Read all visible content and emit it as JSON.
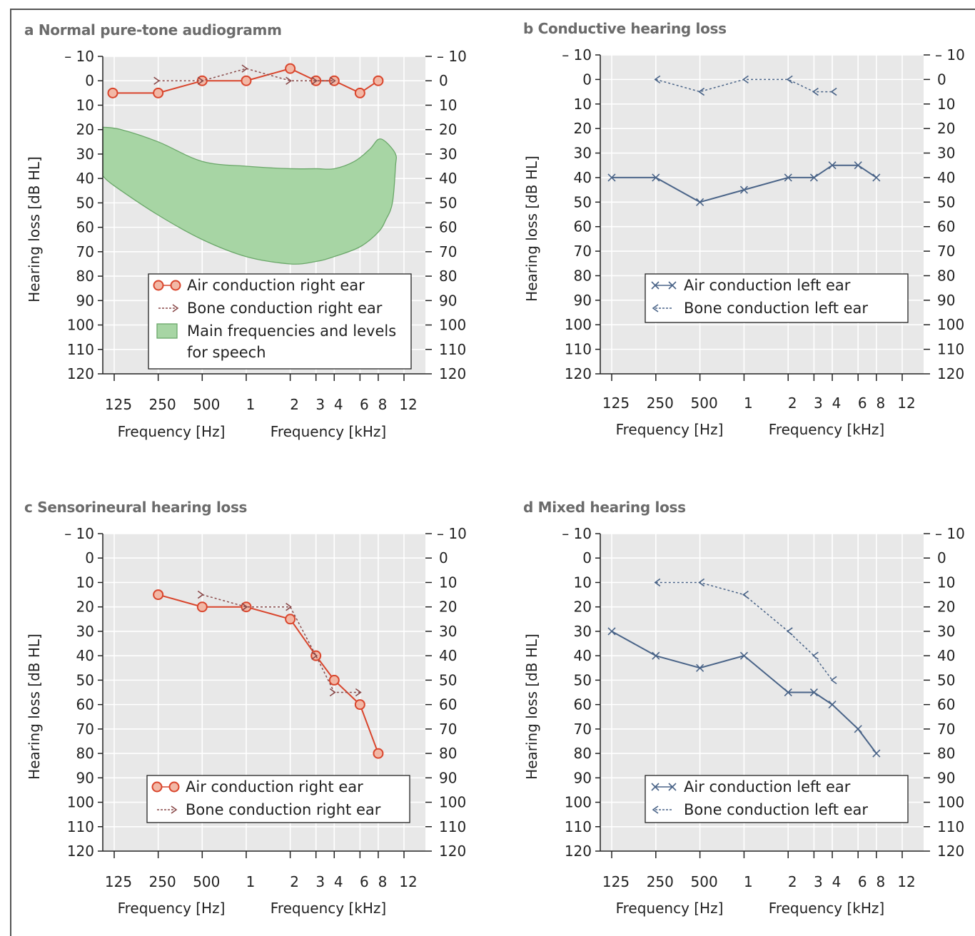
{
  "colors": {
    "red": "#d9452c",
    "red_fill": "#f2b8a6",
    "bone_red": "#8a4a4a",
    "blue": "#4a6488",
    "green_fill": "#a7d5a4",
    "green_stroke": "#6aa769",
    "plot_bg": "#e8e8e8",
    "grid": "#ffffff"
  },
  "chart_data": [
    {
      "id": "a",
      "type": "line",
      "title": "a Normal pure-tone audiogramm",
      "x_ticks": [
        "125",
        "250",
        "500",
        "1",
        "2",
        "3",
        "4",
        "6",
        "8",
        "12"
      ],
      "x_tick_values_hz": [
        125,
        250,
        500,
        1000,
        2000,
        3000,
        4000,
        6000,
        8000,
        12000
      ],
      "x_labels": [
        "Frequency [Hz]",
        "Frequency [kHz]"
      ],
      "ylabel": "Hearing loss [dB HL]",
      "ylim": [
        -10,
        120
      ],
      "y_ticks": [
        "– 10",
        "0",
        "10",
        "20",
        "30",
        "40",
        "50",
        "60",
        "70",
        "80",
        "90",
        "100",
        "110",
        "120"
      ],
      "series": [
        {
          "name": "Air conduction right ear",
          "style": "air-right",
          "x": [
            110,
            250,
            500,
            1000,
            2000,
            3000,
            4000,
            6000,
            8000
          ],
          "y": [
            5,
            5,
            0,
            0,
            -5,
            0,
            0,
            5,
            0
          ]
        },
        {
          "name": "Bone conduction right ear",
          "style": "bone-right",
          "x": [
            250,
            500,
            1000,
            2000,
            3000,
            4000
          ],
          "y": [
            0,
            0,
            -5,
            0,
            0,
            0
          ]
        }
      ],
      "area": {
        "name": "Main frequencies and levels for speech",
        "line2": "for speech",
        "upper": {
          "x": [
            90,
            140,
            250,
            500,
            1000,
            2000,
            3000,
            4000,
            5500,
            7000,
            8000,
            9000,
            10500
          ],
          "y": [
            19,
            20,
            25,
            33,
            35,
            36,
            36,
            36,
            33,
            28,
            24,
            25,
            30
          ]
        },
        "lower": {
          "x": [
            10500,
            10000,
            9000,
            8000,
            6000,
            4000,
            3000,
            2000,
            1000,
            500,
            250,
            125,
            90
          ],
          "y": [
            35,
            50,
            57,
            62,
            68,
            72,
            74,
            75,
            72,
            65,
            55,
            43,
            39
          ]
        }
      },
      "legend": [
        "Air conduction right ear",
        "Bone conduction right ear",
        "Main frequencies and levels",
        "for speech"
      ]
    },
    {
      "id": "b",
      "type": "line",
      "title": "b Conductive hearing loss",
      "x_ticks": [
        "125",
        "250",
        "500",
        "1",
        "2",
        "3",
        "4",
        "6",
        "8",
        "12"
      ],
      "x_tick_values_hz": [
        125,
        250,
        500,
        1000,
        2000,
        3000,
        4000,
        6000,
        8000,
        12000
      ],
      "x_labels": [
        "Frequency [Hz]",
        "Frequency [kHz]"
      ],
      "ylabel": "Hearing loss [dB HL]",
      "ylim": [
        -10,
        120
      ],
      "y_ticks": [
        "– 10",
        "0",
        "10",
        "20",
        "30",
        "40",
        "50",
        "60",
        "70",
        "80",
        "90",
        "100",
        "110",
        "120"
      ],
      "series": [
        {
          "name": "Air conduction left ear",
          "style": "air-left",
          "x": [
            125,
            250,
            500,
            1000,
            2000,
            3000,
            4000,
            6000,
            8000
          ],
          "y": [
            40,
            40,
            50,
            45,
            40,
            40,
            35,
            35,
            40
          ]
        },
        {
          "name": "Bone conduction left ear",
          "style": "bone-left",
          "x": [
            250,
            500,
            1000,
            2000,
            3000,
            4000
          ],
          "y": [
            0,
            5,
            0,
            0,
            5,
            5
          ]
        }
      ],
      "legend": [
        "Air conduction left ear",
        "Bone conduction left ear"
      ]
    },
    {
      "id": "c",
      "type": "line",
      "title": "c Sensorineural hearing loss",
      "x_ticks": [
        "125",
        "250",
        "500",
        "1",
        "2",
        "3",
        "4",
        "6",
        "8",
        "12"
      ],
      "x_tick_values_hz": [
        125,
        250,
        500,
        1000,
        2000,
        3000,
        4000,
        6000,
        8000,
        12000
      ],
      "x_labels": [
        "Frequency [Hz]",
        "Frequency [kHz]"
      ],
      "ylabel": "Hearing loss [dB HL]",
      "ylim": [
        -10,
        120
      ],
      "y_ticks": [
        "– 10",
        "0",
        "10",
        "20",
        "30",
        "40",
        "50",
        "60",
        "70",
        "80",
        "90",
        "100",
        "110",
        "120"
      ],
      "series": [
        {
          "name": "Air conduction right ear",
          "style": "air-right",
          "x": [
            250,
            500,
            1000,
            2000,
            3000,
            4000,
            6000,
            8000
          ],
          "y": [
            15,
            20,
            20,
            25,
            40,
            50,
            60,
            80
          ]
        },
        {
          "name": "Bone conduction right ear",
          "style": "bone-right",
          "x": [
            500,
            1000,
            2000,
            3000,
            4000,
            6000
          ],
          "y": [
            15,
            20,
            20,
            40,
            55,
            55
          ]
        }
      ],
      "legend": [
        "Air conduction right ear",
        "Bone conduction right ear"
      ]
    },
    {
      "id": "d",
      "type": "line",
      "title": "d Mixed hearing loss",
      "x_ticks": [
        "125",
        "250",
        "500",
        "1",
        "2",
        "3",
        "4",
        "6",
        "8",
        "12"
      ],
      "x_tick_values_hz": [
        125,
        250,
        500,
        1000,
        2000,
        3000,
        4000,
        6000,
        8000,
        12000
      ],
      "x_labels": [
        "Frequency [Hz]",
        "Frequency [kHz]"
      ],
      "ylabel": "Hearing loss [dB HL]",
      "ylim": [
        -10,
        120
      ],
      "y_ticks": [
        "– 10",
        "0",
        "10",
        "20",
        "30",
        "40",
        "50",
        "60",
        "70",
        "80",
        "90",
        "100",
        "110",
        "120"
      ],
      "series": [
        {
          "name": "Air conduction left ear",
          "style": "air-left",
          "x": [
            125,
            250,
            500,
            1000,
            2000,
            3000,
            4000,
            6000,
            8000
          ],
          "y": [
            30,
            40,
            45,
            40,
            55,
            55,
            60,
            70,
            80
          ]
        },
        {
          "name": "Bone conduction left ear",
          "style": "bone-left",
          "x": [
            250,
            500,
            1000,
            2000,
            3000,
            4000
          ],
          "y": [
            10,
            10,
            15,
            30,
            40,
            50
          ]
        }
      ],
      "legend": [
        "Air conduction left ear",
        "Bone conduction left ear"
      ]
    }
  ]
}
